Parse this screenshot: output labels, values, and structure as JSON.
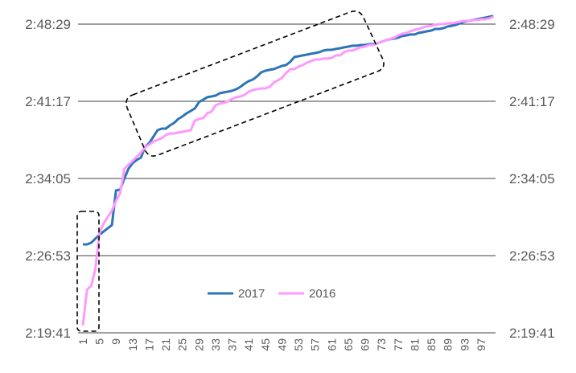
{
  "chart_data": {
    "type": "line",
    "title": "",
    "xlabel": "",
    "ylabel": "",
    "x": [
      1,
      2,
      3,
      4,
      5,
      6,
      7,
      8,
      9,
      10,
      11,
      12,
      13,
      14,
      15,
      16,
      17,
      18,
      19,
      20,
      21,
      22,
      23,
      24,
      25,
      26,
      27,
      28,
      29,
      30,
      31,
      32,
      33,
      34,
      35,
      36,
      37,
      38,
      39,
      40,
      41,
      42,
      43,
      44,
      45,
      46,
      47,
      48,
      49,
      50,
      51,
      52,
      53,
      54,
      55,
      56,
      57,
      58,
      59,
      60,
      61,
      62,
      63,
      64,
      65,
      66,
      67,
      68,
      69,
      70,
      71,
      72,
      73,
      74,
      75,
      76,
      77,
      78,
      79,
      80,
      81,
      82,
      83,
      84,
      85,
      86,
      87,
      88,
      89,
      90,
      91,
      92,
      93,
      94,
      95,
      96,
      97,
      98,
      99,
      100
    ],
    "x_tick_labels": [
      "1",
      "5",
      "9",
      "13",
      "17",
      "21",
      "25",
      "29",
      "33",
      "37",
      "41",
      "45",
      "49",
      "53",
      "57",
      "61",
      "65",
      "69",
      "73",
      "77",
      "81",
      "85",
      "89",
      "93",
      "97"
    ],
    "y_tick_labels": [
      "2:19:41",
      "2:26:53",
      "2:34:05",
      "2:41:17",
      "2:48:29"
    ],
    "ylim": [
      "2:19:41",
      "2:49:41"
    ],
    "grid": "horizontal",
    "legend_position": "bottom-center",
    "secondary_y_axis_mirrors_primary": true,
    "series": [
      {
        "name": "2017",
        "color": "#2E75B6",
        "values": [
          "2:27:56",
          "2:27:56",
          "2:28:05",
          "2:28:28",
          "2:28:50",
          "2:29:08",
          "2:29:26",
          "2:29:44",
          "2:32:58",
          "2:33:02",
          "2:34:05",
          "2:34:59",
          "2:35:31",
          "2:35:49",
          "2:36:02",
          "2:37:01",
          "2:37:23",
          "2:37:59",
          "2:38:35",
          "2:38:44",
          "2:38:44",
          "2:39:02",
          "2:39:16",
          "2:39:38",
          "2:39:52",
          "2:40:10",
          "2:40:23",
          "2:40:37",
          "2:41:13",
          "2:41:26",
          "2:41:40",
          "2:41:44",
          "2:41:49",
          "2:42:02",
          "2:42:07",
          "2:42:11",
          "2:42:16",
          "2:42:25",
          "2:42:38",
          "2:42:56",
          "2:43:10",
          "2:43:19",
          "2:43:37",
          "2:43:59",
          "2:44:08",
          "2:44:13",
          "2:44:17",
          "2:44:26",
          "2:44:35",
          "2:44:40",
          "2:44:58",
          "2:45:25",
          "2:45:29",
          "2:45:34",
          "2:45:38",
          "2:45:43",
          "2:45:47",
          "2:45:52",
          "2:46:01",
          "2:46:05",
          "2:46:05",
          "2:46:10",
          "2:46:14",
          "2:46:19",
          "2:46:23",
          "2:46:28",
          "2:46:28",
          "2:46:32",
          "2:46:32",
          "2:46:37",
          "2:46:37",
          "2:46:41",
          "2:46:50",
          "2:46:59",
          "2:47:04",
          "2:47:08",
          "2:47:13",
          "2:47:22",
          "2:47:26",
          "2:47:31",
          "2:47:31",
          "2:47:40",
          "2:47:44",
          "2:47:49",
          "2:47:53",
          "2:48:02",
          "2:48:02",
          "2:48:07",
          "2:48:16",
          "2:48:20",
          "2:48:25",
          "2:48:34",
          "2:48:43",
          "2:48:47",
          "2:48:52",
          "2:48:56",
          "2:49:01",
          "2:49:05",
          "2:49:10",
          "2:49:14"
        ]
      },
      {
        "name": "2016",
        "color": "#FF99FF",
        "values": [
          "2:20:22",
          "2:23:44",
          "2:24:02",
          "2:25:37",
          "2:28:59",
          "2:29:53",
          "2:30:29",
          "2:31:05",
          "2:31:59",
          "2:32:44",
          "2:34:59",
          "2:35:22",
          "2:35:44",
          "2:36:07",
          "2:36:29",
          "2:37:01",
          "2:37:14",
          "2:37:32",
          "2:37:41",
          "2:37:50",
          "2:38:08",
          "2:38:17",
          "2:38:17",
          "2:38:22",
          "2:38:26",
          "2:38:31",
          "2:38:35",
          "2:39:29",
          "2:39:38",
          "2:39:43",
          "2:40:10",
          "2:40:19",
          "2:40:55",
          "2:41:04",
          "2:41:08",
          "2:41:17",
          "2:41:31",
          "2:41:40",
          "2:41:44",
          "2:41:53",
          "2:42:11",
          "2:42:20",
          "2:42:25",
          "2:42:29",
          "2:42:29",
          "2:42:38",
          "2:43:01",
          "2:43:14",
          "2:43:28",
          "2:43:55",
          "2:44:17",
          "2:44:17",
          "2:44:31",
          "2:44:40",
          "2:44:53",
          "2:45:02",
          "2:45:11",
          "2:45:11",
          "2:45:16",
          "2:45:16",
          "2:45:20",
          "2:45:34",
          "2:45:34",
          "2:45:52",
          "2:46:01",
          "2:46:01",
          "2:46:10",
          "2:46:19",
          "2:46:23",
          "2:46:32",
          "2:46:32",
          "2:46:41",
          "2:46:50",
          "2:46:59",
          "2:47:04",
          "2:47:13",
          "2:47:26",
          "2:47:35",
          "2:47:40",
          "2:47:49",
          "2:47:58",
          "2:48:02",
          "2:48:11",
          "2:48:16",
          "2:48:20",
          "2:48:25",
          "2:48:29",
          "2:48:29",
          "2:48:34",
          "2:48:34",
          "2:48:38",
          "2:48:43",
          "2:48:47",
          "2:48:47",
          "2:48:52",
          "2:48:52",
          "2:48:56",
          "2:48:56",
          "2:49:01",
          "2:49:10"
        ]
      }
    ]
  }
}
